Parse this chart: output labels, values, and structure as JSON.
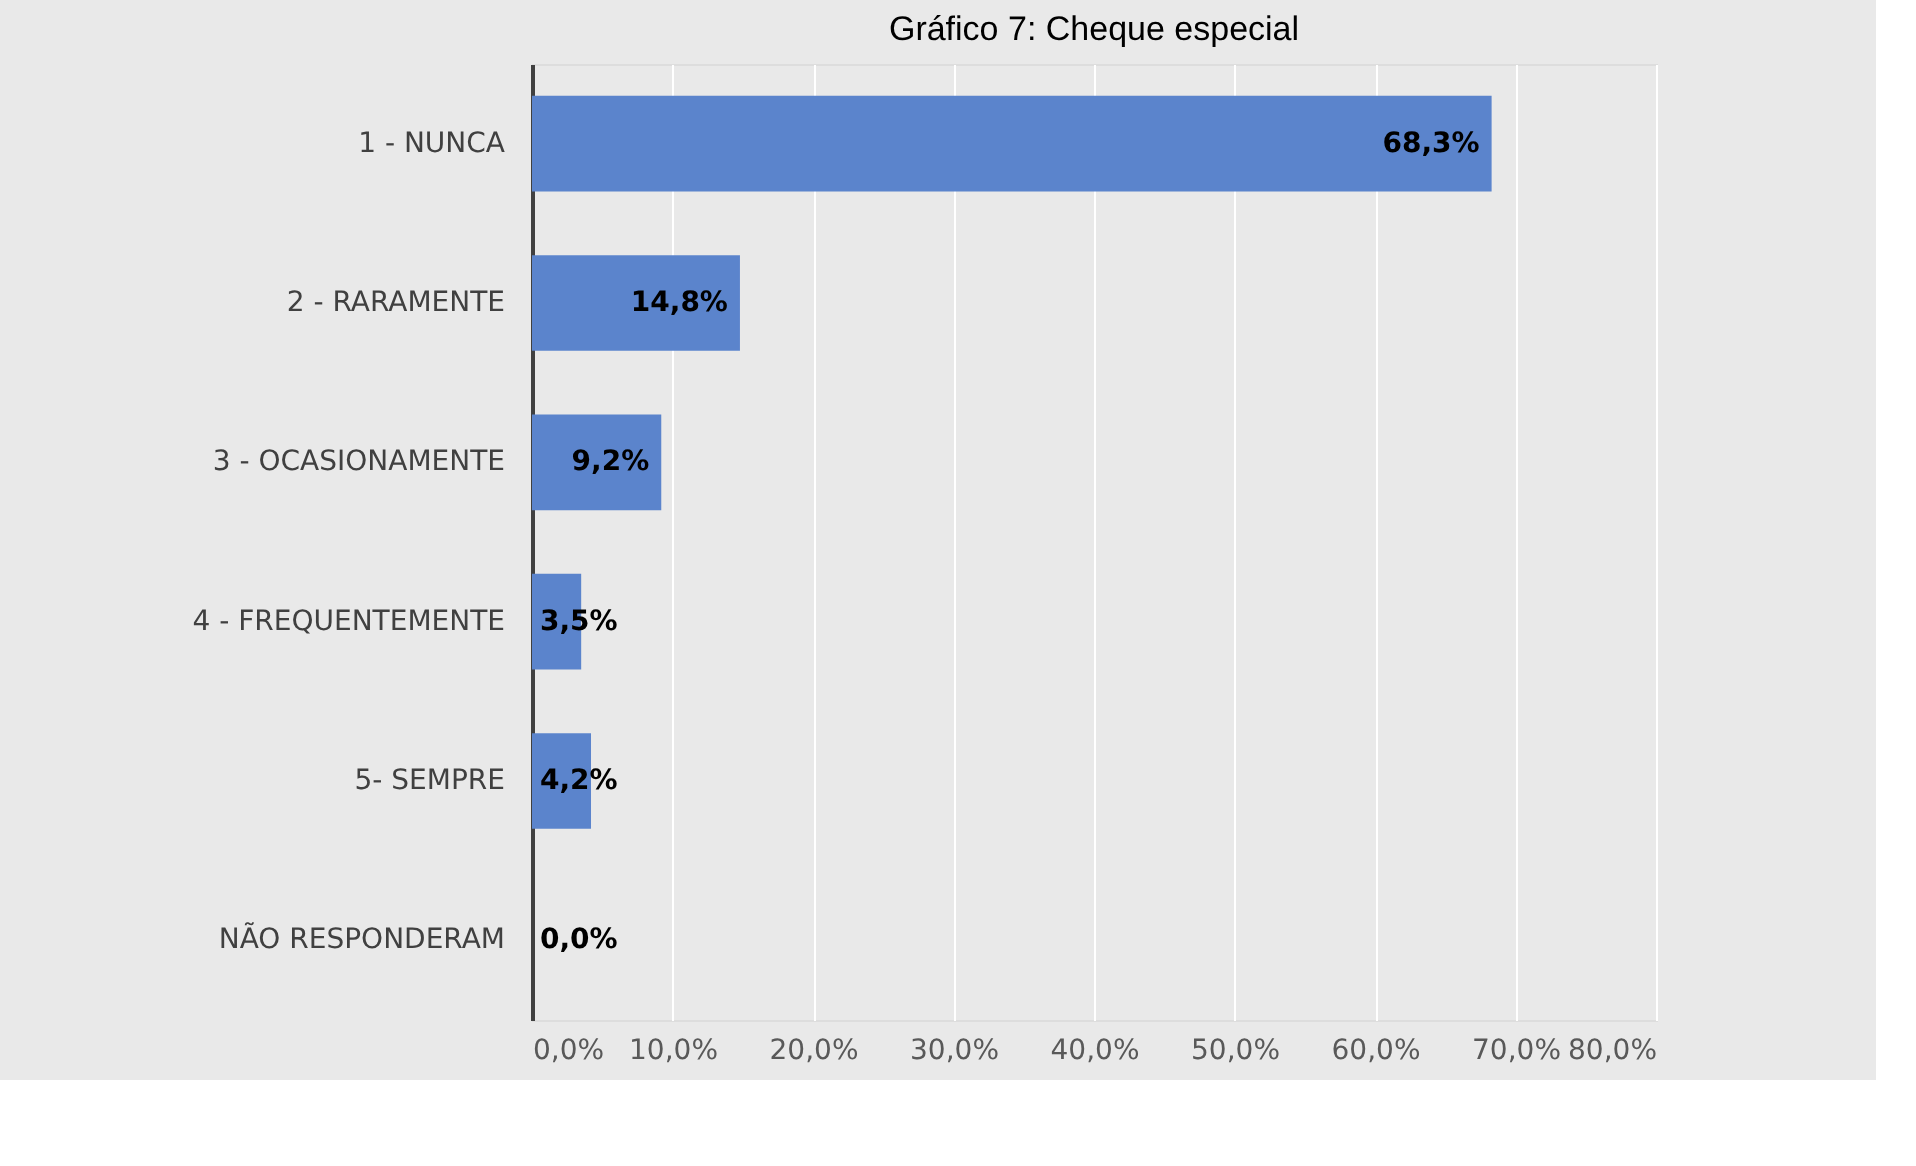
{
  "chart_data": {
    "type": "bar",
    "orientation": "horizontal",
    "title": "Gráfico 7: Cheque especial",
    "categories": [
      "1 - NUNCA",
      "2 - RARAMENTE",
      "3 - OCASIONAMENTE",
      "4 - FREQUENTEMENTE",
      "5- SEMPRE",
      "NÃO RESPONDERAM"
    ],
    "values": [
      68.3,
      14.8,
      9.2,
      3.5,
      4.2,
      0.0
    ],
    "value_labels": [
      "68,3%",
      "14,8%",
      "9,2%",
      "3,5%",
      "4,2%",
      "0,0%"
    ],
    "color": "#5b84cc",
    "xlim": [
      0,
      80
    ],
    "xticks": [
      {
        "value": 0,
        "label": "0,0%"
      },
      {
        "value": 10,
        "label": "10,0%"
      },
      {
        "value": 20,
        "label": "20,0%"
      },
      {
        "value": 30,
        "label": "30,0%"
      },
      {
        "value": 40,
        "label": "40,0%"
      },
      {
        "value": 50,
        "label": "50,0%"
      },
      {
        "value": 60,
        "label": "60,0%"
      },
      {
        "value": 70,
        "label": "70,0%"
      },
      {
        "value": 80,
        "label": "80,0%"
      }
    ],
    "grid": "x"
  }
}
